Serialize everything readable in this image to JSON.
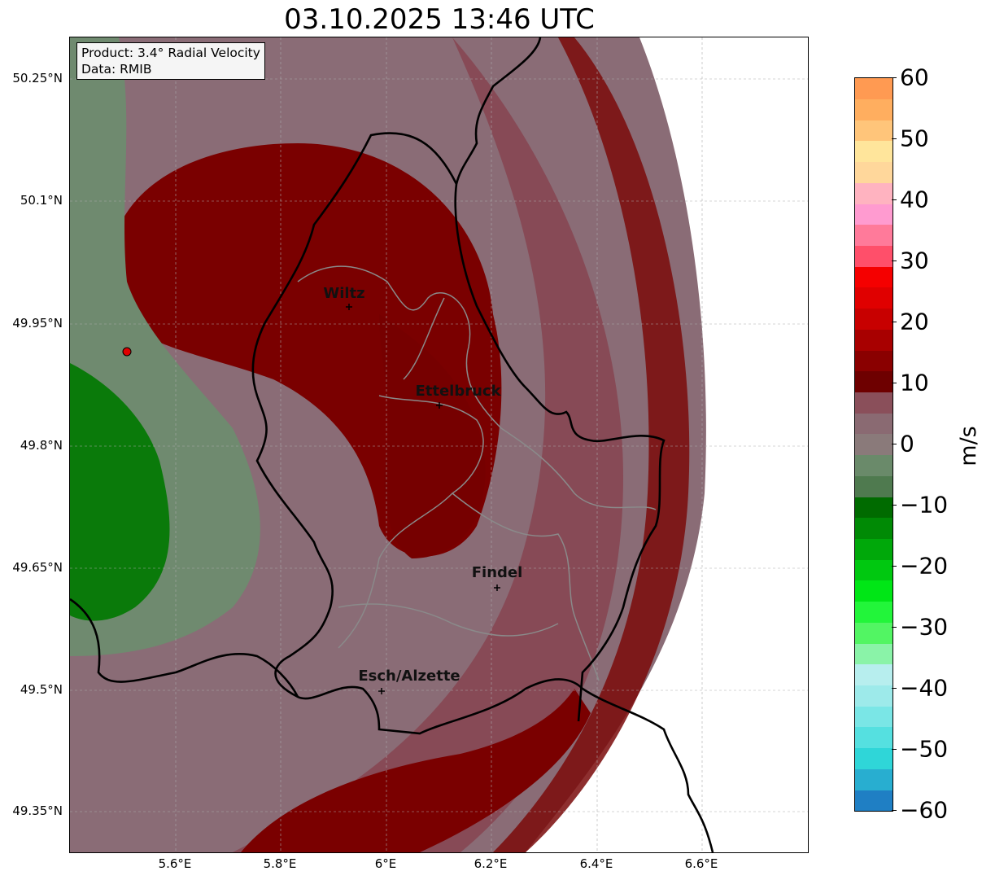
{
  "title": "03.10.2025 13:46 UTC",
  "info": {
    "product": "Product: 3.4° Radial Velocity",
    "data_source": "Data: RMIB"
  },
  "lat_ticks": [
    "50.25°N",
    "50.1°N",
    "49.95°N",
    "49.8°N",
    "49.65°N",
    "49.5°N",
    "49.35°N"
  ],
  "lon_ticks": [
    "5.6°E",
    "5.8°E",
    "6°E",
    "6.2°E",
    "6.4°E",
    "6.6°E"
  ],
  "cities": [
    {
      "name": "Wiltz"
    },
    {
      "name": "Ettelbruck"
    },
    {
      "name": "Findel"
    },
    {
      "name": "Esch/Alzette"
    }
  ],
  "colorbar": {
    "unit": "m/s",
    "tick_labels": [
      "60",
      "50",
      "40",
      "30",
      "20",
      "10",
      "0",
      "−10",
      "−20",
      "−30",
      "−40",
      "−50",
      "−60"
    ],
    "range": [
      -60,
      60
    ],
    "colors": [
      "#1f7fc4",
      "#28aed0",
      "#2fd6d8",
      "#55e0e0",
      "#7ae6e6",
      "#9deaea",
      "#b7eeee",
      "#8af3a8",
      "#52f563",
      "#22f53a",
      "#00e616",
      "#00c810",
      "#00a80a",
      "#008a05",
      "#006b00",
      "#4f7a4f",
      "#6a8a6a",
      "#8a7a7a",
      "#8a6a72",
      "#8a4f5a",
      "#6e0000",
      "#8a0000",
      "#a80000",
      "#c80000",
      "#e00000",
      "#f50000",
      "#ff4f6a",
      "#ff7a9a",
      "#ff9bd0",
      "#ffb3c0",
      "#ffd79b",
      "#ffe59b",
      "#ffc57a",
      "#ffae5f",
      "#ff9a52"
    ]
  }
}
